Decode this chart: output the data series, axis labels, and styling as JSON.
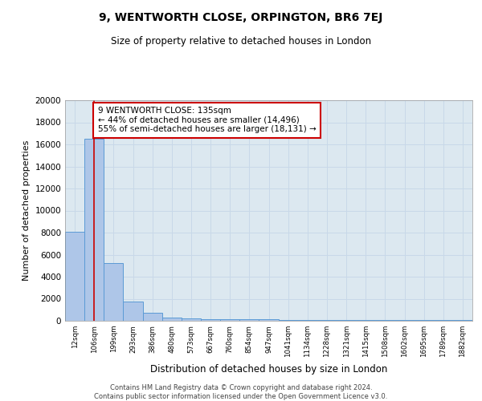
{
  "title": "9, WENTWORTH CLOSE, ORPINGTON, BR6 7EJ",
  "subtitle": "Size of property relative to detached houses in London",
  "xlabel": "Distribution of detached houses by size in London",
  "ylabel": "Number of detached properties",
  "bar_labels": [
    "12sqm",
    "106sqm",
    "199sqm",
    "293sqm",
    "386sqm",
    "480sqm",
    "573sqm",
    "667sqm",
    "760sqm",
    "854sqm",
    "947sqm",
    "1041sqm",
    "1134sqm",
    "1228sqm",
    "1321sqm",
    "1415sqm",
    "1508sqm",
    "1602sqm",
    "1695sqm",
    "1789sqm",
    "1882sqm"
  ],
  "bar_values": [
    8100,
    16500,
    5250,
    1750,
    700,
    320,
    220,
    180,
    140,
    120,
    110,
    95,
    90,
    80,
    70,
    65,
    60,
    55,
    50,
    45,
    40
  ],
  "bar_color": "#aec6e8",
  "bar_edge_color": "#5b9bd5",
  "property_line_x": 1,
  "property_line_color": "#cc0000",
  "annotation_text": "9 WENTWORTH CLOSE: 135sqm\n← 44% of detached houses are smaller (14,496)\n55% of semi-detached houses are larger (18,131) →",
  "annotation_box_color": "#ffffff",
  "annotation_box_edge": "#cc0000",
  "ylim": [
    0,
    20000
  ],
  "yticks": [
    0,
    2000,
    4000,
    6000,
    8000,
    10000,
    12000,
    14000,
    16000,
    18000,
    20000
  ],
  "grid_color": "#c8d8e8",
  "bg_color": "#dce8f0",
  "footer_line1": "Contains HM Land Registry data © Crown copyright and database right 2024.",
  "footer_line2": "Contains public sector information licensed under the Open Government Licence v3.0."
}
